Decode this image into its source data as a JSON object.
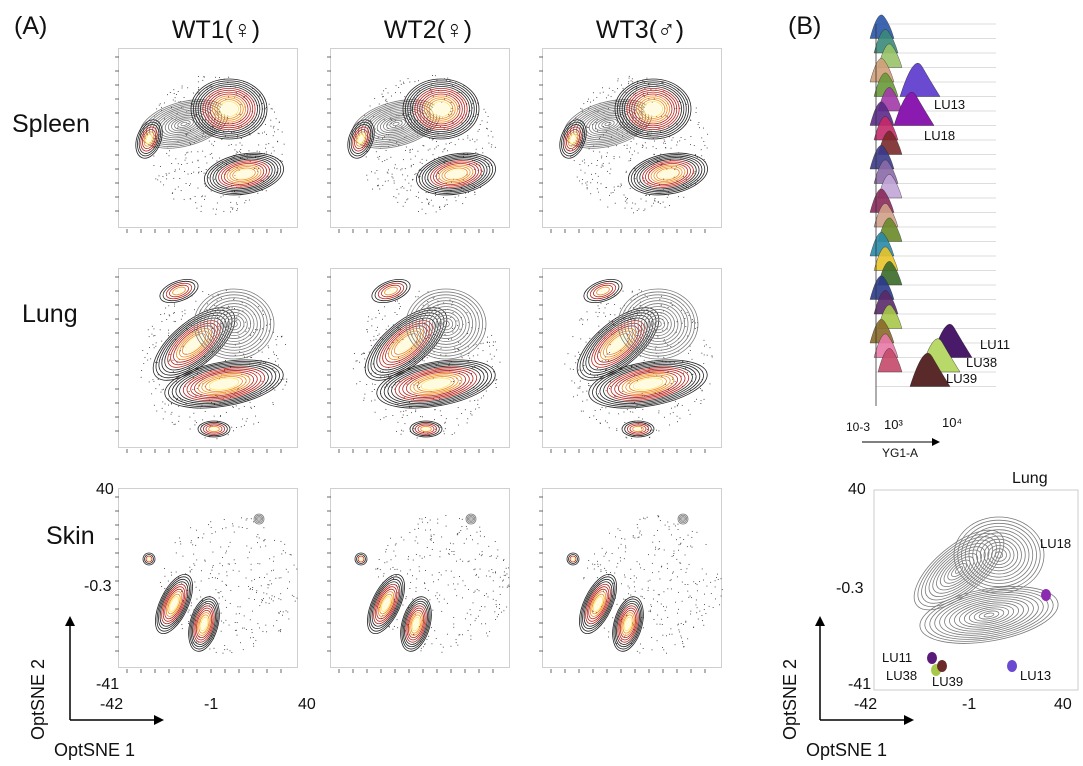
{
  "panel_a": {
    "letter": "(A)",
    "columns": [
      "WT1(♀)",
      "WT2(♀)",
      "WT3(♂)"
    ],
    "rows": [
      "Spleen",
      "Lung",
      "Skin"
    ],
    "y_ticks": [
      "40",
      "-0.3",
      "-41"
    ],
    "x_ticks": [
      "-42",
      "-1",
      "40"
    ],
    "x_axis_title": "OptSNE 1",
    "y_axis_title": "OptSNE 2"
  },
  "panel_b": {
    "letter": "(B)",
    "histogram": {
      "x_ticks": [
        "10-3",
        "10³",
        "10⁴"
      ],
      "x_axis_title": "YG1-A",
      "labels": [
        "LU13",
        "LU18",
        "LU11",
        "LU38",
        "LU39"
      ]
    },
    "tsne": {
      "title": "Lung",
      "y_ticks": [
        "40",
        "-0.3",
        "-41"
      ],
      "x_ticks": [
        "-42",
        "-1",
        "40"
      ],
      "x_axis_title": "OptSNE 1",
      "y_axis_title": "OptSNE 2",
      "labels": [
        {
          "text": "LU18",
          "color": "#8a2bb0"
        },
        {
          "text": "LU11",
          "color": "#5a1a7a"
        },
        {
          "text": "LU38",
          "color": "#a8c84a"
        },
        {
          "text": "LU39",
          "color": "#6a2a2a"
        },
        {
          "text": "LU13",
          "color": "#6a4ad0"
        }
      ]
    }
  },
  "colors": {
    "contour_hot": "#ffe25a",
    "contour_mid": "#f08a1c",
    "contour_dark": "#b8221a",
    "gray_contour": "#7a7a7a"
  }
}
